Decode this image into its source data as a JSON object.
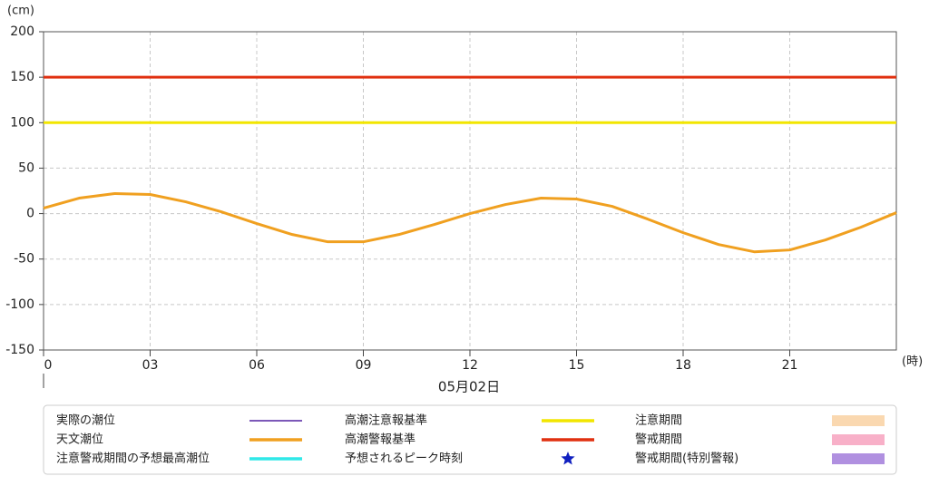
{
  "chart_data": {
    "type": "line",
    "y_unit_label": "(cm)",
    "x_unit_label": "(時)",
    "date_label": "05月02日",
    "x": [
      0,
      1,
      2,
      3,
      4,
      5,
      6,
      7,
      8,
      9,
      10,
      11,
      12,
      13,
      14,
      15,
      16,
      17,
      18,
      19,
      20,
      21,
      22,
      23,
      24
    ],
    "xlim": [
      0,
      24
    ],
    "xticks": [
      {
        "value": 0,
        "label": "0"
      },
      {
        "value": 3,
        "label": "03"
      },
      {
        "value": 6,
        "label": "06"
      },
      {
        "value": 9,
        "label": "09"
      },
      {
        "value": 12,
        "label": "12"
      },
      {
        "value": 15,
        "label": "15"
      },
      {
        "value": 18,
        "label": "18"
      },
      {
        "value": 21,
        "label": "21"
      }
    ],
    "ylim": [
      -150,
      200
    ],
    "yticks": [
      -150,
      -100,
      -50,
      0,
      50,
      100,
      150,
      200
    ],
    "grid": true,
    "series": [
      {
        "name": "天文潮位",
        "color": "#f0a020",
        "values": [
          6,
          17,
          22,
          21,
          13,
          2,
          -11,
          -23,
          -31,
          -31,
          -23,
          -12,
          0,
          10,
          17,
          16,
          8,
          -6,
          -21,
          -34,
          -42,
          -40,
          -29,
          -15,
          1
        ]
      }
    ],
    "hlines": [
      {
        "name": "高潮注意報基準",
        "color": "#f2e600",
        "value": 100
      },
      {
        "name": "高潮警報基準",
        "color": "#e03010",
        "value": 150
      }
    ],
    "legend_only": [
      {
        "name": "実際の潮位",
        "color": "#5020a0",
        "symbol": "line"
      },
      {
        "name": "注意警戒期間の予想最高潮位",
        "color": "#30e8e8",
        "symbol": "line"
      },
      {
        "name": "予想されるピーク時刻",
        "color": "#1020c0",
        "symbol": "star"
      },
      {
        "name": "注意期間",
        "color": "#fad8b0",
        "symbol": "rect"
      },
      {
        "name": "警戒期間",
        "color": "#f8b0c8",
        "symbol": "rect"
      },
      {
        "name": "警戒期間(特別警報)",
        "color": "#b090e0",
        "symbol": "rect"
      }
    ]
  }
}
